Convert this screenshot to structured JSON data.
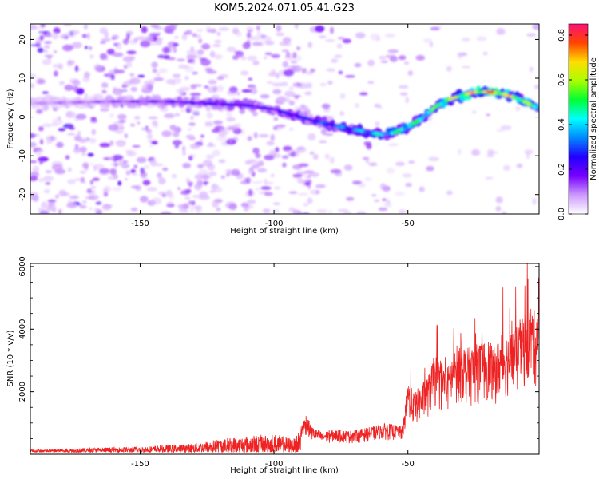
{
  "figure": {
    "title": "KOM5.2024.071.05.41.G23"
  },
  "chart_data": [
    {
      "type": "heatmap",
      "name": "spectrogram",
      "xlabel": "Height of straight line (km)",
      "ylabel": "Frequency (Hz)",
      "xlim": [
        -191,
        -1
      ],
      "ylim": [
        -25,
        24
      ],
      "xticks": [
        -150,
        -100,
        -50
      ],
      "yticks": [
        -20,
        -10,
        0,
        10,
        20
      ],
      "colormap": [
        "#ffffff",
        "#cc99ff",
        "#7700ff",
        "#2200ff",
        "#0088ff",
        "#00ffff",
        "#00ff33",
        "#aaff00",
        "#ffdd00",
        "#ff4400",
        "#ff1177"
      ],
      "colorbar": {
        "label": "Normalized spectral amplitude",
        "range": [
          0.0,
          0.85
        ],
        "ticks": [
          0.0,
          0.2,
          0.4,
          0.6,
          0.8
        ]
      },
      "ridge": {
        "description_x": [
          -191,
          -160,
          -140,
          -125,
          -110,
          -100,
          -90,
          -82,
          -75,
          -68,
          -60,
          -55,
          -50,
          -45,
          -40,
          -35,
          -30,
          -25,
          -20,
          -15,
          -10,
          -5,
          -1
        ],
        "frequency_hz": [
          3.5,
          4,
          4,
          3.5,
          3,
          2,
          0,
          -1.5,
          -2.5,
          -3.5,
          -4.5,
          -4,
          -2.5,
          -0.5,
          2.5,
          4.5,
          5.5,
          6.5,
          6.5,
          6,
          5,
          3.5,
          2
        ],
        "peak_amplitude": [
          0.1,
          0.15,
          0.2,
          0.25,
          0.25,
          0.25,
          0.3,
          0.35,
          0.4,
          0.45,
          0.5,
          0.55,
          0.6,
          0.55,
          0.6,
          0.7,
          0.75,
          0.8,
          0.85,
          0.8,
          0.75,
          0.65,
          0.6
        ]
      }
    },
    {
      "type": "line",
      "name": "snr",
      "xlabel": "Height of straight line (km)",
      "ylabel": "SNR (10 * v/v)",
      "xlim": [
        -191,
        -1
      ],
      "ylim": [
        0,
        6100
      ],
      "xticks": [
        -150,
        -100,
        -50
      ],
      "yticks": [
        2000,
        4000,
        6000
      ],
      "color": "#ee2222",
      "envelope_x": [
        -191,
        -170,
        -150,
        -130,
        -120,
        -110,
        -100,
        -92,
        -88,
        -86,
        -82,
        -78,
        -72,
        -65,
        -58,
        -52,
        -50,
        -48,
        -45,
        -42,
        -40,
        -38,
        -35,
        -32,
        -30,
        -28,
        -25,
        -22,
        -20,
        -18,
        -15,
        -12,
        -10,
        -8,
        -6,
        -4,
        -2,
        -1
      ],
      "envelope_snr": [
        150,
        200,
        250,
        350,
        500,
        600,
        650,
        500,
        1300,
        900,
        700,
        800,
        750,
        850,
        1000,
        900,
        2400,
        2000,
        2200,
        2600,
        3200,
        3000,
        2800,
        3500,
        3600,
        3400,
        3500,
        3600,
        3700,
        3400,
        3800,
        3900,
        4000,
        4200,
        4600,
        4800,
        4500,
        6100
      ]
    }
  ]
}
